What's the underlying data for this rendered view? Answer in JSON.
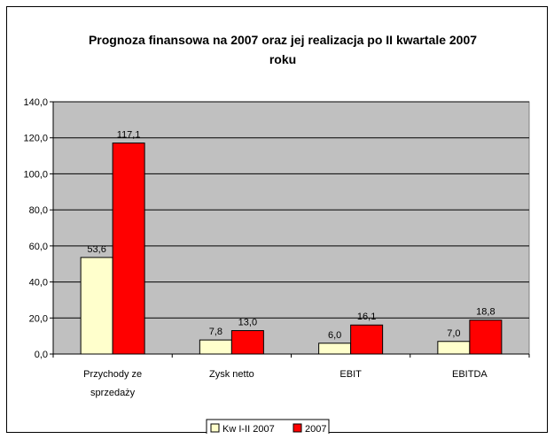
{
  "chart_data": {
    "type": "bar",
    "title": "Prognoza finansowa na 2007 oraz jej realizacja po II kwartale 2007 roku",
    "title_lines": [
      "Prognoza finansowa na 2007 oraz jej realizacja po II kwartale 2007",
      "roku"
    ],
    "categories": [
      "Przychody ze sprzedaży",
      "Zysk netto",
      "EBIT",
      "EBITDA"
    ],
    "category_lines": [
      [
        "Przychody ze",
        "sprzedaży"
      ],
      [
        "Zysk netto"
      ],
      [
        "EBIT"
      ],
      [
        "EBITDA"
      ]
    ],
    "series": [
      {
        "name": "Kw I-II 2007",
        "values": [
          53.6,
          7.8,
          6.0,
          7.0
        ],
        "labels": [
          "53,6",
          "7,8",
          "6,0",
          "7,0"
        ],
        "color": "#FFFFCC"
      },
      {
        "name": "2007",
        "values": [
          117.1,
          13.0,
          16.1,
          18.8
        ],
        "labels": [
          "117,1",
          "13,0",
          "16,1",
          "18,8"
        ],
        "color": "#FF0000"
      }
    ],
    "y_ticks": [
      0,
      20,
      40,
      60,
      80,
      100,
      120,
      140
    ],
    "y_tick_labels": [
      "0,0",
      "20,0",
      "40,0",
      "60,0",
      "80,0",
      "100,0",
      "120,0",
      "140,0"
    ],
    "ylim": [
      0,
      140
    ],
    "xlabel": "",
    "ylabel": "",
    "grid": true,
    "legend_position": "bottom",
    "plot_background": "#C0C0C0"
  }
}
